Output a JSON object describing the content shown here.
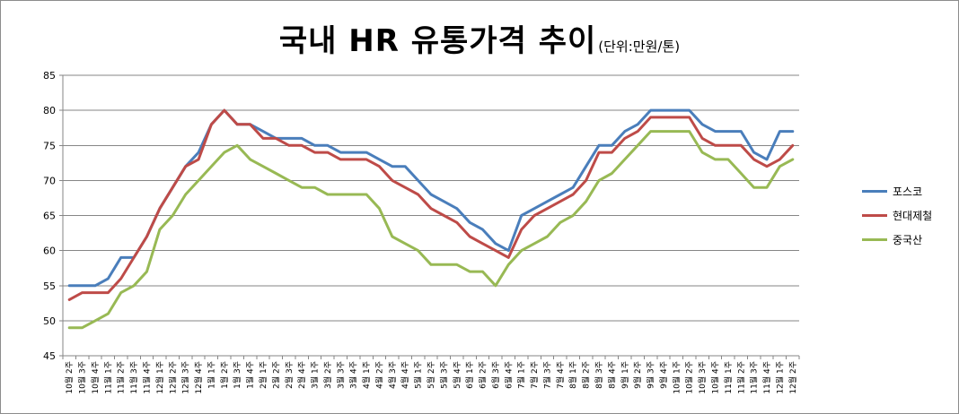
{
  "title": {
    "main": "국내 HR 유통가격 추이",
    "unit": "(단위:만원/톤)"
  },
  "chart_data": {
    "type": "line",
    "ylim": [
      45,
      85
    ],
    "yticks": [
      45,
      50,
      55,
      60,
      65,
      70,
      75,
      80,
      85
    ],
    "grid": true,
    "legend_position": "right",
    "x": [
      "10월 2주",
      "10월 3주",
      "10월 4주",
      "11월 1주",
      "11월 2주",
      "11월 3주",
      "11월 4주",
      "12월 1주",
      "12월 2주",
      "12월 3주",
      "12월 4주",
      "1월 1주",
      "1월 2주",
      "1월 3주",
      "1월 4주",
      "2월 1주",
      "2월 2주",
      "2월 3주",
      "2월 4주",
      "3월 1주",
      "3월 2주",
      "3월 3주",
      "3월 4주",
      "4월 1주",
      "4월 2주",
      "4월 3주",
      "4월 4주",
      "5월 1주",
      "5월 2주",
      "5월 3주",
      "5월 4주",
      "6월 1주",
      "6월 2주",
      "6월 3주",
      "6월 4주",
      "7월 1주",
      "7월 2주",
      "7월 3주",
      "7월 4주",
      "8월 1주",
      "8월 2주",
      "8월 3주",
      "8월 4주",
      "9월 1주",
      "9월 2주",
      "9월 3주",
      "9월 4주",
      "10월 1주",
      "10월 2주",
      "10월 3주",
      "10월 4주",
      "11월 1주",
      "11월 2주",
      "11월 3주",
      "11월 4주",
      "12월 1주",
      "12월 2주"
    ],
    "series": [
      {
        "name": "포스코",
        "color": "#4a7ebb",
        "values": [
          55,
          55,
          55,
          56,
          59,
          59,
          62,
          66,
          69,
          72,
          74,
          78,
          80,
          78,
          78,
          77,
          76,
          76,
          76,
          75,
          75,
          74,
          74,
          74,
          73,
          72,
          72,
          70,
          68,
          67,
          66,
          64,
          63,
          61,
          60,
          65,
          66,
          67,
          68,
          69,
          72,
          75,
          75,
          77,
          78,
          80,
          80,
          80,
          80,
          78,
          77,
          77,
          77,
          74,
          73,
          77,
          77
        ]
      },
      {
        "name": "현대제철",
        "color": "#be4b48",
        "values": [
          53,
          54,
          54,
          54,
          56,
          59,
          62,
          66,
          69,
          72,
          73,
          78,
          80,
          78,
          78,
          76,
          76,
          75,
          75,
          74,
          74,
          73,
          73,
          73,
          72,
          70,
          69,
          68,
          66,
          65,
          64,
          62,
          61,
          60,
          59,
          63,
          65,
          66,
          67,
          68,
          70,
          74,
          74,
          76,
          77,
          79,
          79,
          79,
          79,
          76,
          75,
          75,
          75,
          73,
          72,
          73,
          75
        ]
      },
      {
        "name": "중국산",
        "color": "#98b954",
        "values": [
          49,
          49,
          50,
          51,
          54,
          55,
          57,
          63,
          65,
          68,
          70,
          72,
          74,
          75,
          73,
          72,
          71,
          70,
          69,
          69,
          68,
          68,
          68,
          68,
          66,
          62,
          61,
          60,
          58,
          58,
          58,
          57,
          57,
          55,
          58,
          60,
          61,
          62,
          64,
          65,
          67,
          70,
          71,
          73,
          75,
          77,
          77,
          77,
          77,
          74,
          73,
          73,
          71,
          69,
          69,
          72,
          73
        ]
      }
    ]
  }
}
